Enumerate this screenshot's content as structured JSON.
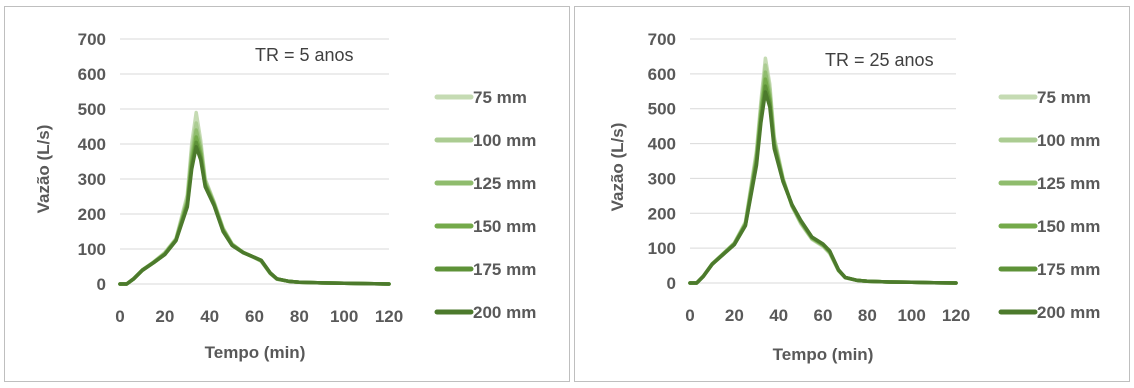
{
  "chart_data": [
    {
      "type": "line",
      "annotation": "TR = 5 anos",
      "xlabel": "Tempo (min)",
      "ylabel": "Vazão (L/s)",
      "xlim": [
        0,
        120
      ],
      "ylim": [
        0,
        700
      ],
      "xticks": [
        "0",
        "20",
        "40",
        "60",
        "80",
        "100",
        "120"
      ],
      "yticks": [
        "0",
        "100",
        "200",
        "300",
        "400",
        "500",
        "600",
        "700"
      ],
      "grid": "horizontal",
      "legend": "right",
      "x": [
        0,
        3,
        6,
        10,
        15,
        20,
        25,
        30,
        32,
        34,
        36,
        38,
        42,
        46,
        50,
        55,
        60,
        63,
        67,
        70,
        75,
        80,
        90,
        100,
        110,
        120
      ],
      "series": [
        {
          "name": "75 mm",
          "color": "#c5dbb3",
          "values": [
            0,
            0,
            15,
            40,
            63,
            90,
            130,
            255,
            400,
            490,
            410,
            300,
            235,
            160,
            115,
            90,
            75,
            65,
            30,
            14,
            8,
            5,
            3,
            2,
            1,
            0
          ]
        },
        {
          "name": "100 mm",
          "color": "#abcc92",
          "values": [
            0,
            0,
            15,
            40,
            62,
            88,
            128,
            245,
            380,
            460,
            395,
            295,
            232,
            158,
            114,
            90,
            75,
            66,
            30,
            14,
            8,
            5,
            3,
            2,
            1,
            0
          ]
        },
        {
          "name": "125 mm",
          "color": "#8fbc6d",
          "values": [
            0,
            0,
            14,
            40,
            62,
            87,
            127,
            238,
            365,
            440,
            385,
            290,
            230,
            156,
            113,
            90,
            76,
            66,
            31,
            14,
            8,
            5,
            3,
            2,
            1,
            0
          ]
        },
        {
          "name": "150 mm",
          "color": "#74aa4a",
          "values": [
            0,
            0,
            14,
            40,
            62,
            86,
            126,
            232,
            350,
            420,
            372,
            286,
            228,
            154,
            112,
            90,
            76,
            67,
            31,
            15,
            8,
            5,
            3,
            2,
            1,
            0
          ]
        },
        {
          "name": "175 mm",
          "color": "#5e9238",
          "values": [
            0,
            0,
            14,
            40,
            61,
            85,
            125,
            226,
            338,
            405,
            362,
            282,
            226,
            152,
            111,
            90,
            76,
            67,
            31,
            15,
            8,
            5,
            3,
            2,
            1,
            0
          ]
        },
        {
          "name": "200 mm",
          "color": "#4c7a2c",
          "values": [
            0,
            0,
            14,
            39,
            61,
            84,
            124,
            220,
            328,
            392,
            355,
            278,
            224,
            150,
            110,
            89,
            76,
            68,
            32,
            15,
            8,
            5,
            3,
            2,
            1,
            0
          ]
        }
      ]
    },
    {
      "type": "line",
      "annotation": "TR = 25 anos",
      "xlabel": "Tempo (min)",
      "ylabel": "Vazão (L/s)",
      "xlim": [
        0,
        120
      ],
      "ylim": [
        0,
        700
      ],
      "xticks": [
        "0",
        "20",
        "40",
        "60",
        "80",
        "100",
        "120"
      ],
      "yticks": [
        "0",
        "100",
        "200",
        "300",
        "400",
        "500",
        "600",
        "700"
      ],
      "grid": "horizontal",
      "legend": "right",
      "x": [
        0,
        3,
        6,
        10,
        15,
        20,
        25,
        30,
        32,
        34,
        36,
        38,
        42,
        46,
        50,
        55,
        60,
        63,
        67,
        70,
        75,
        80,
        90,
        100,
        110,
        120
      ],
      "series": [
        {
          "name": "75 mm",
          "color": "#c5dbb3",
          "values": [
            0,
            0,
            20,
            55,
            85,
            115,
            175,
            380,
            520,
            645,
            570,
            420,
            300,
            220,
            170,
            125,
            105,
            85,
            35,
            15,
            8,
            5,
            3,
            2,
            1,
            0
          ]
        },
        {
          "name": "100 mm",
          "color": "#abcc92",
          "values": [
            0,
            0,
            20,
            55,
            84,
            114,
            172,
            370,
            505,
            625,
            555,
            412,
            298,
            220,
            172,
            127,
            107,
            87,
            36,
            15,
            8,
            5,
            3,
            2,
            1,
            0
          ]
        },
        {
          "name": "125 mm",
          "color": "#8fbc6d",
          "values": [
            0,
            0,
            19,
            55,
            84,
            113,
            170,
            362,
            495,
            605,
            540,
            405,
            296,
            222,
            175,
            128,
            108,
            88,
            36,
            16,
            8,
            5,
            3,
            2,
            1,
            0
          ]
        },
        {
          "name": "150 mm",
          "color": "#74aa4a",
          "values": [
            0,
            0,
            19,
            54,
            83,
            112,
            168,
            354,
            482,
            585,
            528,
            398,
            294,
            223,
            177,
            130,
            110,
            90,
            37,
            16,
            8,
            5,
            3,
            2,
            1,
            0
          ]
        },
        {
          "name": "175 mm",
          "color": "#5e9238",
          "values": [
            0,
            0,
            19,
            54,
            83,
            111,
            166,
            346,
            470,
            565,
            516,
            392,
            292,
            224,
            178,
            131,
            111,
            91,
            37,
            16,
            8,
            5,
            3,
            2,
            1,
            0
          ]
        },
        {
          "name": "200 mm",
          "color": "#4c7a2c",
          "values": [
            0,
            0,
            19,
            54,
            82,
            110,
            164,
            338,
            460,
            548,
            505,
            386,
            290,
            225,
            180,
            132,
            112,
            92,
            38,
            16,
            8,
            5,
            3,
            2,
            1,
            0
          ]
        }
      ]
    }
  ]
}
